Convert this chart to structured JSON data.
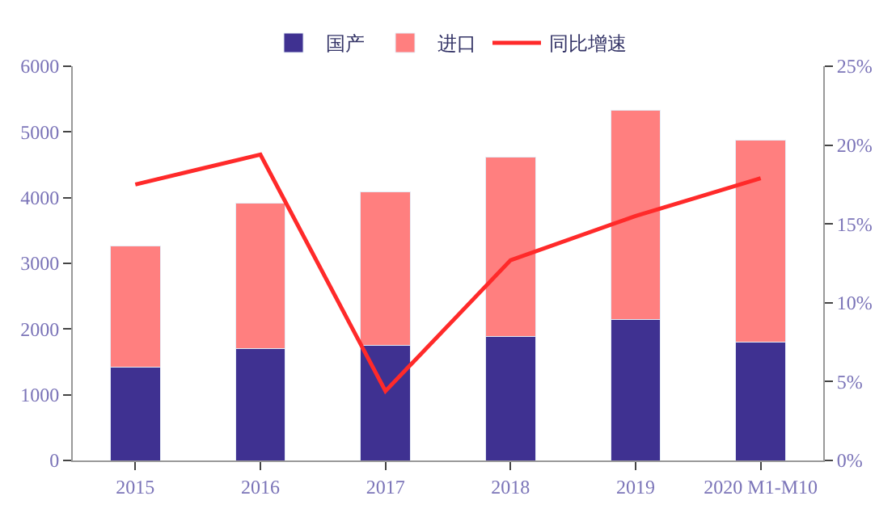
{
  "chart_data": {
    "type": "bar",
    "stacked": true,
    "categories": [
      "2015",
      "2016",
      "2017",
      "2018",
      "2019",
      "2020 M1-M10"
    ],
    "series": [
      {
        "name": "国产",
        "color": "#3f3191",
        "values": [
          1420,
          1700,
          1750,
          1890,
          2140,
          1800
        ]
      },
      {
        "name": "进口",
        "color": "#ff7f7f",
        "values": [
          1850,
          2220,
          2340,
          2730,
          3190,
          3070
        ]
      },
      {
        "name": "同比增速",
        "type": "line",
        "axis": "y2",
        "color": "#ff2a2a",
        "values": [
          17.5,
          19.4,
          4.4,
          12.7,
          15.5,
          17.9
        ]
      }
    ],
    "ylim": [
      0,
      6000
    ],
    "yticks": [
      0,
      1000,
      2000,
      3000,
      4000,
      5000,
      6000
    ],
    "y2lim": [
      0,
      25
    ],
    "y2ticks": [
      {
        "value": 0,
        "label": "0%"
      },
      {
        "value": 5,
        "label": "5%"
      },
      {
        "value": 10,
        "label": "10%"
      },
      {
        "value": 15,
        "label": "15%"
      },
      {
        "value": 20,
        "label": "20%"
      },
      {
        "value": 25,
        "label": "25%"
      }
    ],
    "legend": "top",
    "marker": "none"
  }
}
